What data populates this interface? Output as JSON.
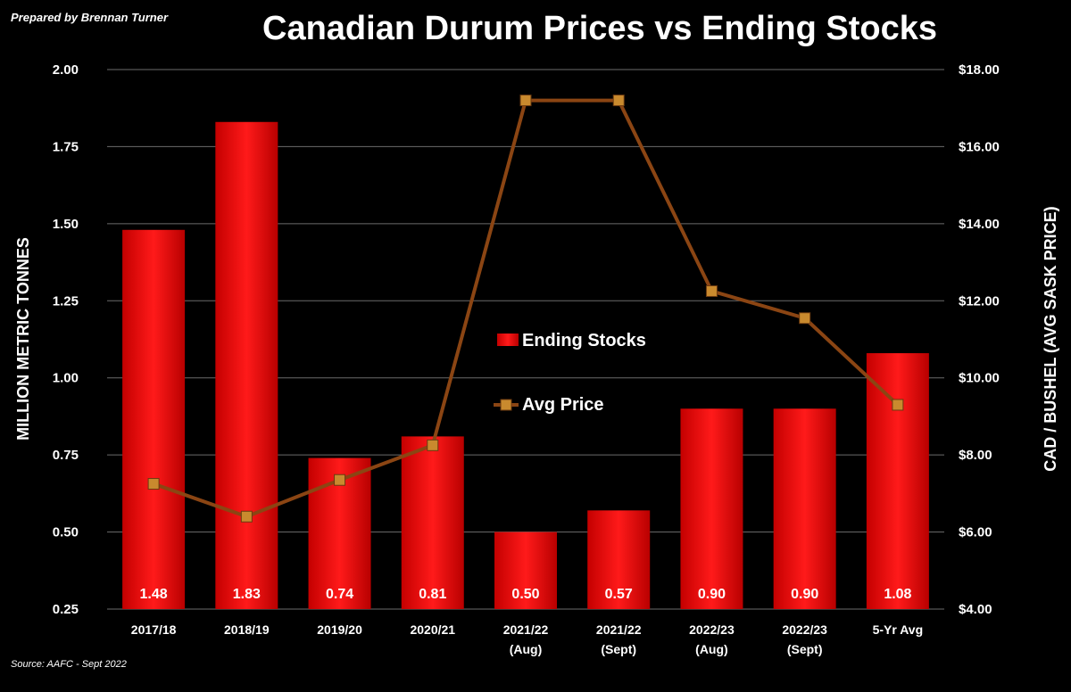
{
  "header": {
    "prepared_by": "Prepared by Brennan Turner",
    "source": "Source: AAFC -  Sept 2022"
  },
  "colors": {
    "background": "#000000",
    "bar": "#ff0000",
    "line": "#8b4513",
    "marker": "#c98a2e",
    "grid": "#6b6b6b",
    "text": "#ffffff"
  },
  "chart_data": {
    "type": "bar",
    "title": "Canadian Durum Prices vs Ending Stocks",
    "categories": [
      [
        "2017/18"
      ],
      [
        "2018/19"
      ],
      [
        "2019/20"
      ],
      [
        "2020/21"
      ],
      [
        "2021/22",
        "(Aug)"
      ],
      [
        "2021/22",
        "(Sept)"
      ],
      [
        "2022/23",
        "(Aug)"
      ],
      [
        "2022/23",
        "(Sept)"
      ],
      [
        "5-Yr Avg"
      ]
    ],
    "ylabel": "MILLION METRIC TONNES",
    "y2label": "CAD / BUSHEL (AVG SASK PRICE)",
    "ylim": [
      0.25,
      2.0
    ],
    "y2lim": [
      4.0,
      18.0
    ],
    "yticks": [
      "0.25",
      "0.50",
      "0.75",
      "1.00",
      "1.25",
      "1.50",
      "1.75",
      "2.00"
    ],
    "y2ticks": [
      "$4.00",
      "$6.00",
      "$8.00",
      "$10.00",
      "$12.00",
      "$14.00",
      "$16.00",
      "$18.00"
    ],
    "grid": true,
    "legend_position": "center",
    "series": [
      {
        "name": "Ending Stocks",
        "type": "bar",
        "axis": "left",
        "values": [
          1.48,
          1.83,
          0.74,
          0.81,
          0.5,
          0.57,
          0.9,
          0.9,
          1.08
        ],
        "labels": [
          "1.48",
          "1.83",
          "0.74",
          "0.81",
          "0.50",
          "0.57",
          "0.90",
          "0.90",
          "1.08"
        ]
      },
      {
        "name": "Avg Price",
        "type": "line",
        "axis": "right",
        "values": [
          7.25,
          6.4,
          7.35,
          8.25,
          17.2,
          17.2,
          12.25,
          11.55,
          9.3
        ]
      }
    ]
  }
}
